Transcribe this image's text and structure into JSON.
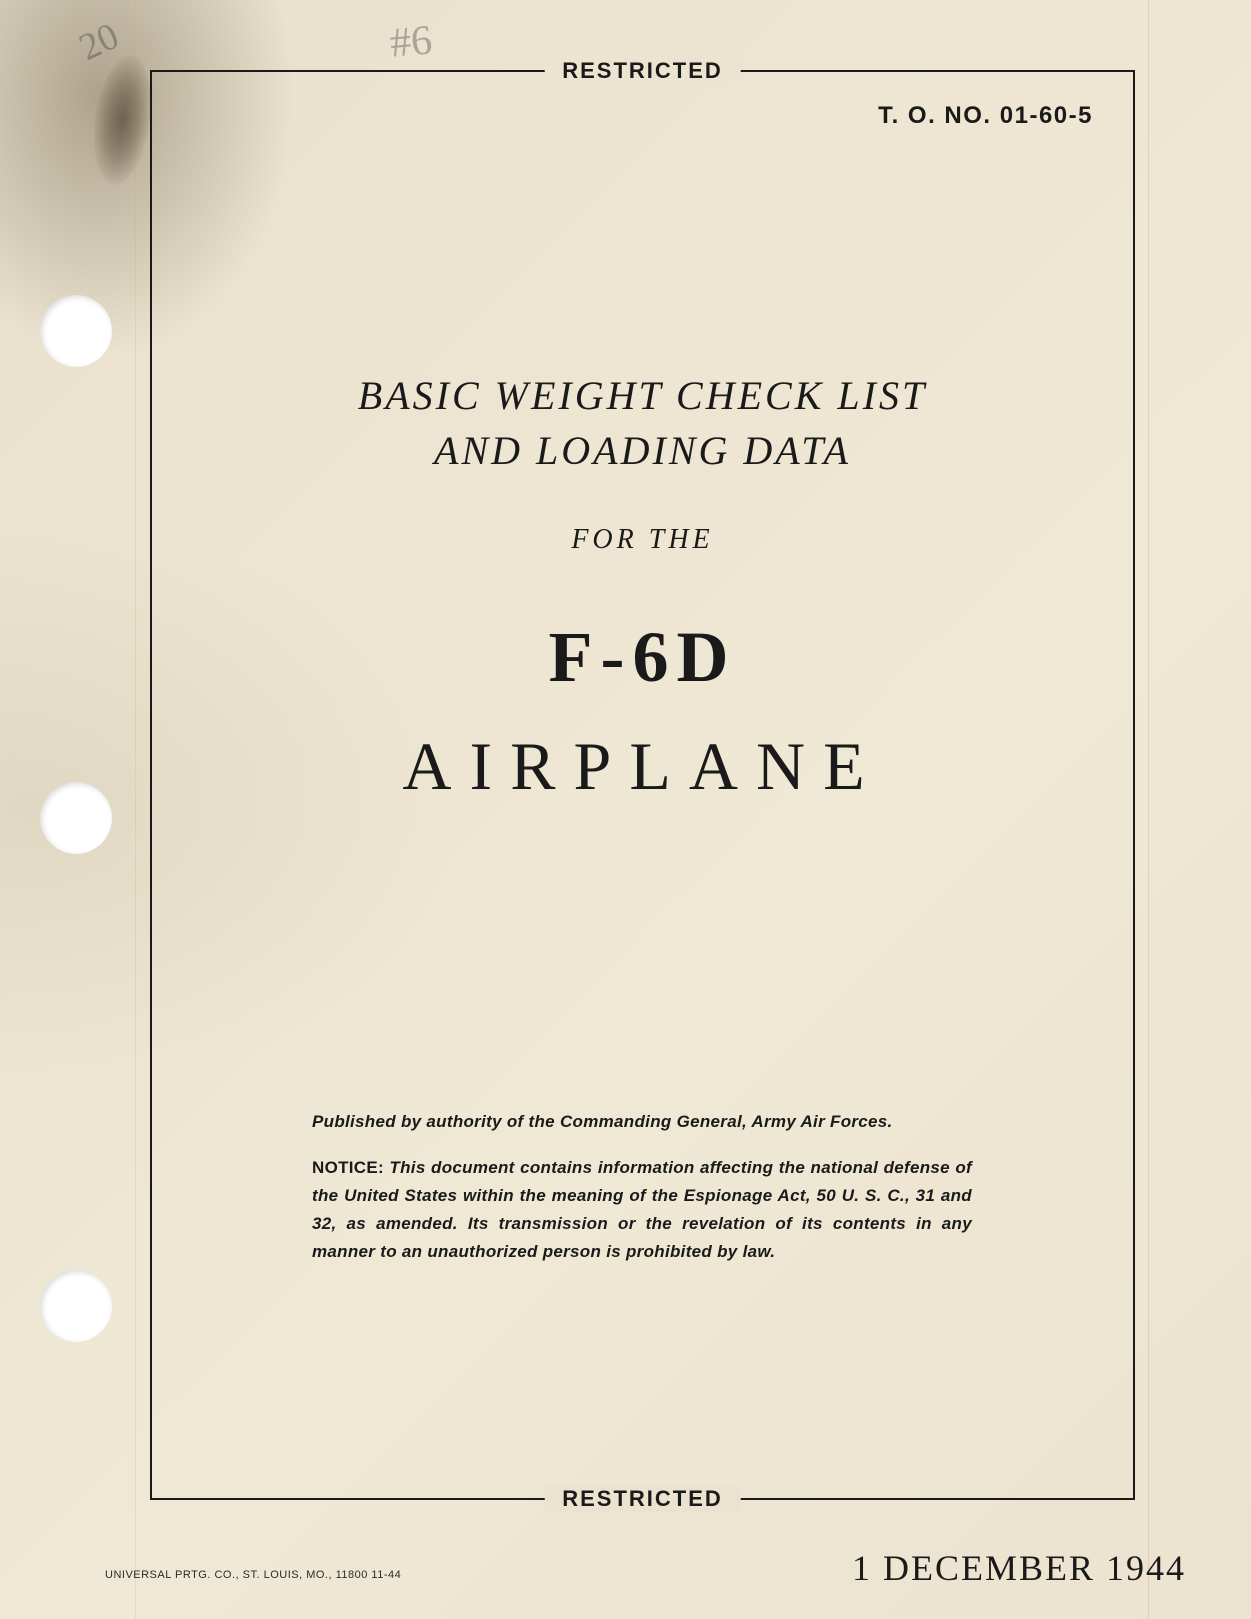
{
  "classification": "RESTRICTED",
  "document_number": "T. O. NO. 01-60-5",
  "title": {
    "line1": "BASIC WEIGHT CHECK LIST",
    "line2": "AND LOADING DATA",
    "for_the": "FOR THE",
    "model": "F-6D",
    "vehicle": "AIRPLANE"
  },
  "authority": "Published by authority of the Commanding General, Army Air Forces.",
  "notice_label": "NOTICE:",
  "notice_text": " This document contains information affecting the national defense of the United States within the meaning of the Espionage Act, 50 U. S. C., 31 and 32, as amended. Its transmission or the revelation of its contents in any manner to an unauthorized person is prohibited by law.",
  "date": "1 DECEMBER 1944",
  "printer": "UNIVERSAL PRTG. CO., ST. LOUIS, MO., 11800 11-44",
  "handwritten": {
    "mark1": "20",
    "mark2": "#6"
  },
  "colors": {
    "paper_bg": "#ece4d0",
    "ink": "#1a1a1a",
    "hole": "#ffffff"
  }
}
